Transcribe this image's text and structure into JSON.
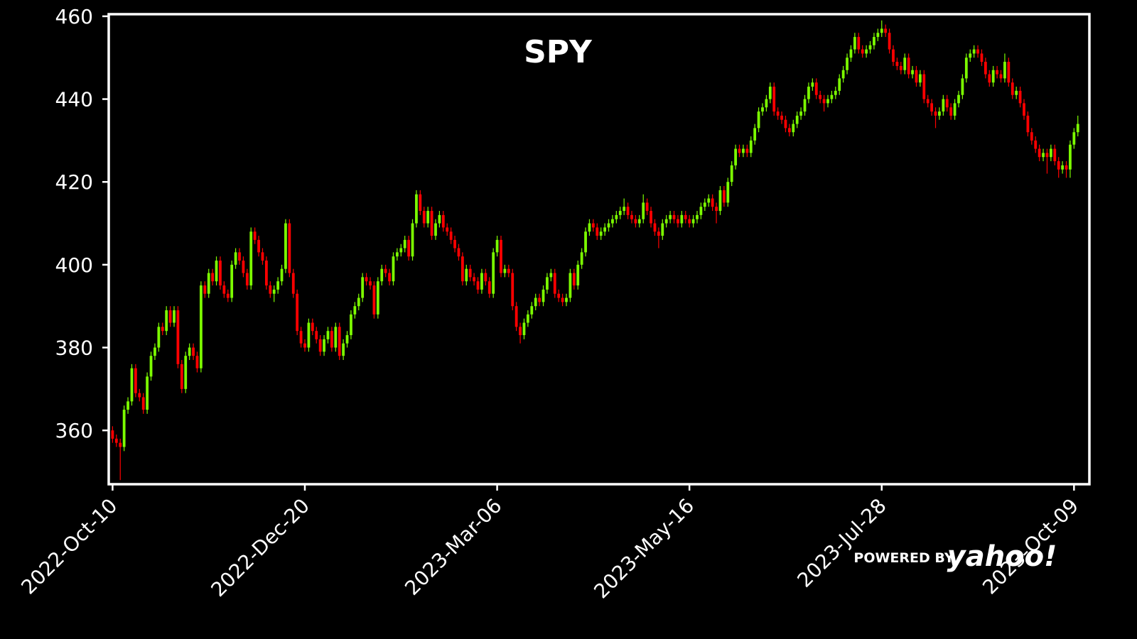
{
  "chart_data": {
    "type": "candlestick",
    "title": "SPY",
    "watermark": [
      "POWERED BY",
      "yahoo!"
    ],
    "up_color": "#7cfc00",
    "down_color": "#ff0000",
    "frame_color": "#ffffff",
    "ylim": [
      347,
      460.5
    ],
    "yticks": [
      360,
      380,
      400,
      420,
      440,
      460
    ],
    "xlim": [
      -1,
      254
    ],
    "xticks": [
      {
        "value": 0,
        "label": "2022-Oct-10"
      },
      {
        "value": 50,
        "label": "2022-Dec-20"
      },
      {
        "value": 100,
        "label": "2023-Mar-06"
      },
      {
        "value": 150,
        "label": "2023-May-16"
      },
      {
        "value": 200,
        "label": "2023-Jul-28"
      },
      {
        "value": 250,
        "label": "2023-Oct-09"
      }
    ],
    "candles": [
      [
        360,
        361,
        357,
        358
      ],
      [
        358,
        359,
        356,
        357
      ],
      [
        357,
        358,
        348,
        356
      ],
      [
        356,
        366,
        355,
        365
      ],
      [
        365,
        368,
        364,
        367
      ],
      [
        367,
        376,
        366,
        375
      ],
      [
        375,
        376,
        368,
        369
      ],
      [
        369,
        370,
        367,
        368
      ],
      [
        368,
        369,
        364,
        365
      ],
      [
        365,
        374,
        364,
        373
      ],
      [
        373,
        379,
        372,
        378
      ],
      [
        378,
        381,
        377,
        380
      ],
      [
        380,
        386,
        379,
        385
      ],
      [
        385,
        386,
        383,
        384
      ],
      [
        384,
        390,
        383,
        389
      ],
      [
        389,
        390,
        385,
        386
      ],
      [
        386,
        390,
        385,
        389
      ],
      [
        389,
        390,
        375,
        376
      ],
      [
        376,
        377,
        369,
        370
      ],
      [
        370,
        379,
        369,
        378
      ],
      [
        378,
        381,
        377,
        380
      ],
      [
        380,
        381,
        377,
        378
      ],
      [
        378,
        379,
        374,
        375
      ],
      [
        375,
        396,
        374,
        395
      ],
      [
        395,
        396,
        392,
        393
      ],
      [
        393,
        399,
        392,
        398
      ],
      [
        398,
        399,
        395,
        396
      ],
      [
        396,
        402,
        395,
        401
      ],
      [
        401,
        402,
        394,
        395
      ],
      [
        395,
        396,
        392,
        393
      ],
      [
        393,
        394,
        391,
        392
      ],
      [
        392,
        401,
        391,
        400
      ],
      [
        400,
        404,
        399,
        403
      ],
      [
        403,
        404,
        400,
        401
      ],
      [
        401,
        402,
        397,
        398
      ],
      [
        398,
        399,
        394,
        395
      ],
      [
        395,
        409,
        394,
        408
      ],
      [
        408,
        409,
        405,
        406
      ],
      [
        406,
        407,
        402,
        403
      ],
      [
        403,
        404,
        400,
        401
      ],
      [
        401,
        402,
        394,
        395
      ],
      [
        395,
        396,
        392,
        393
      ],
      [
        393,
        395,
        391,
        394
      ],
      [
        394,
        397,
        393,
        396
      ],
      [
        396,
        400,
        395,
        399
      ],
      [
        399,
        411,
        398,
        410
      ],
      [
        410,
        411,
        397,
        398
      ],
      [
        398,
        399,
        392,
        393
      ],
      [
        393,
        394,
        383,
        384
      ],
      [
        384,
        385,
        380,
        381
      ],
      [
        381,
        382,
        379,
        380
      ],
      [
        380,
        387,
        379,
        386
      ],
      [
        386,
        387,
        383,
        384
      ],
      [
        384,
        385,
        381,
        382
      ],
      [
        382,
        383,
        378,
        379
      ],
      [
        379,
        383,
        378,
        382
      ],
      [
        382,
        385,
        381,
        384
      ],
      [
        384,
        385,
        379,
        380
      ],
      [
        380,
        386,
        379,
        385
      ],
      [
        385,
        386,
        377,
        378
      ],
      [
        378,
        382,
        377,
        381
      ],
      [
        381,
        384,
        380,
        383
      ],
      [
        383,
        389,
        382,
        388
      ],
      [
        388,
        391,
        387,
        390
      ],
      [
        390,
        393,
        389,
        392
      ],
      [
        392,
        398,
        391,
        397
      ],
      [
        397,
        398,
        395,
        396
      ],
      [
        396,
        397,
        394,
        395
      ],
      [
        395,
        396,
        387,
        388
      ],
      [
        388,
        397,
        387,
        396
      ],
      [
        396,
        400,
        395,
        399
      ],
      [
        399,
        400,
        397,
        398
      ],
      [
        398,
        399,
        395,
        396
      ],
      [
        396,
        403,
        395,
        402
      ],
      [
        402,
        404,
        401,
        403
      ],
      [
        403,
        405,
        402,
        404
      ],
      [
        404,
        407,
        403,
        406
      ],
      [
        406,
        407,
        401,
        402
      ],
      [
        402,
        411,
        401,
        410
      ],
      [
        410,
        418,
        409,
        417
      ],
      [
        417,
        418,
        412,
        413
      ],
      [
        413,
        414,
        409,
        410
      ],
      [
        410,
        414,
        409,
        413
      ],
      [
        413,
        414,
        406,
        407
      ],
      [
        407,
        411,
        406,
        410
      ],
      [
        410,
        413,
        409,
        412
      ],
      [
        412,
        413,
        408,
        409
      ],
      [
        409,
        410,
        407,
        408
      ],
      [
        408,
        409,
        405,
        406
      ],
      [
        406,
        407,
        403,
        404
      ],
      [
        404,
        405,
        401,
        402
      ],
      [
        402,
        403,
        395,
        396
      ],
      [
        396,
        400,
        395,
        399
      ],
      [
        399,
        400,
        396,
        397
      ],
      [
        397,
        398,
        395,
        396
      ],
      [
        396,
        397,
        393,
        394
      ],
      [
        394,
        399,
        393,
        398
      ],
      [
        398,
        399,
        395,
        396
      ],
      [
        396,
        397,
        392,
        393
      ],
      [
        393,
        404,
        392,
        403
      ],
      [
        403,
        407,
        402,
        406
      ],
      [
        406,
        407,
        397,
        398
      ],
      [
        398,
        400,
        397,
        399
      ],
      [
        399,
        400,
        397,
        398
      ],
      [
        398,
        399,
        389,
        390
      ],
      [
        390,
        391,
        384,
        385
      ],
      [
        385,
        386,
        381,
        383
      ],
      [
        383,
        387,
        382,
        386
      ],
      [
        386,
        389,
        385,
        388
      ],
      [
        388,
        391,
        387,
        390
      ],
      [
        390,
        393,
        389,
        392
      ],
      [
        392,
        393,
        390,
        391
      ],
      [
        391,
        395,
        390,
        394
      ],
      [
        394,
        398,
        393,
        397
      ],
      [
        397,
        399,
        396,
        398
      ],
      [
        398,
        399,
        392,
        393
      ],
      [
        393,
        394,
        391,
        392
      ],
      [
        392,
        393,
        390,
        391
      ],
      [
        391,
        393,
        390,
        392
      ],
      [
        392,
        399,
        391,
        398
      ],
      [
        398,
        399,
        394,
        395
      ],
      [
        395,
        401,
        394,
        400
      ],
      [
        400,
        404,
        399,
        403
      ],
      [
        403,
        409,
        402,
        408
      ],
      [
        408,
        411,
        407,
        410
      ],
      [
        410,
        411,
        408,
        409
      ],
      [
        409,
        410,
        406,
        407
      ],
      [
        407,
        409,
        406,
        408
      ],
      [
        408,
        410,
        407,
        409
      ],
      [
        409,
        411,
        408,
        410
      ],
      [
        410,
        412,
        409,
        411
      ],
      [
        411,
        413,
        410,
        412
      ],
      [
        412,
        414,
        411,
        413
      ],
      [
        413,
        416,
        412,
        414
      ],
      [
        414,
        415,
        411,
        412
      ],
      [
        412,
        413,
        410,
        411
      ],
      [
        411,
        412,
        409,
        410
      ],
      [
        410,
        412,
        409,
        411
      ],
      [
        411,
        417,
        410,
        415
      ],
      [
        415,
        416,
        412,
        413
      ],
      [
        413,
        414,
        409,
        410
      ],
      [
        410,
        411,
        407,
        408
      ],
      [
        408,
        409,
        404,
        407
      ],
      [
        407,
        411,
        406,
        410
      ],
      [
        410,
        412,
        409,
        411
      ],
      [
        411,
        413,
        410,
        412
      ],
      [
        412,
        413,
        410,
        411
      ],
      [
        411,
        412,
        409,
        410
      ],
      [
        410,
        413,
        409,
        412
      ],
      [
        412,
        413,
        410,
        411
      ],
      [
        411,
        412,
        409,
        410
      ],
      [
        410,
        412,
        409,
        411
      ],
      [
        411,
        413,
        410,
        412
      ],
      [
        412,
        415,
        411,
        414
      ],
      [
        414,
        416,
        413,
        415
      ],
      [
        415,
        417,
        414,
        416
      ],
      [
        416,
        417,
        413,
        414
      ],
      [
        414,
        415,
        410,
        413
      ],
      [
        413,
        419,
        412,
        418
      ],
      [
        418,
        419,
        414,
        415
      ],
      [
        415,
        421,
        414,
        420
      ],
      [
        420,
        425,
        419,
        424
      ],
      [
        424,
        429,
        423,
        428
      ],
      [
        428,
        429,
        426,
        427
      ],
      [
        427,
        429,
        426,
        428
      ],
      [
        428,
        429,
        426,
        427
      ],
      [
        427,
        431,
        426,
        430
      ],
      [
        430,
        434,
        429,
        433
      ],
      [
        433,
        438,
        432,
        437
      ],
      [
        437,
        439,
        436,
        438
      ],
      [
        438,
        441,
        437,
        440
      ],
      [
        440,
        444,
        439,
        443
      ],
      [
        443,
        444,
        436,
        437
      ],
      [
        437,
        438,
        435,
        436
      ],
      [
        436,
        437,
        434,
        435
      ],
      [
        435,
        436,
        432,
        433
      ],
      [
        433,
        434,
        431,
        432
      ],
      [
        432,
        435,
        431,
        434
      ],
      [
        434,
        437,
        433,
        436
      ],
      [
        436,
        438,
        435,
        437
      ],
      [
        437,
        441,
        436,
        440
      ],
      [
        440,
        444,
        439,
        443
      ],
      [
        443,
        445,
        442,
        444
      ],
      [
        444,
        445,
        440,
        441
      ],
      [
        441,
        442,
        439,
        440
      ],
      [
        440,
        441,
        437,
        439
      ],
      [
        439,
        441,
        438,
        440
      ],
      [
        440,
        442,
        439,
        441
      ],
      [
        441,
        443,
        440,
        442
      ],
      [
        442,
        446,
        441,
        445
      ],
      [
        445,
        448,
        444,
        447
      ],
      [
        447,
        451,
        446,
        450
      ],
      [
        450,
        453,
        449,
        452
      ],
      [
        452,
        456,
        451,
        455
      ],
      [
        455,
        456,
        451,
        452
      ],
      [
        452,
        453,
        450,
        451
      ],
      [
        451,
        453,
        450,
        452
      ],
      [
        452,
        454,
        451,
        453
      ],
      [
        453,
        456,
        452,
        455
      ],
      [
        455,
        457,
        454,
        456
      ],
      [
        456,
        459,
        455,
        457
      ],
      [
        457,
        458,
        455,
        456
      ],
      [
        456,
        457,
        451,
        452
      ],
      [
        452,
        453,
        448,
        449
      ],
      [
        449,
        450,
        447,
        448
      ],
      [
        448,
        449,
        446,
        447
      ],
      [
        447,
        451,
        446,
        450
      ],
      [
        450,
        451,
        445,
        446
      ],
      [
        446,
        448,
        445,
        447
      ],
      [
        447,
        448,
        443,
        444
      ],
      [
        444,
        447,
        443,
        446
      ],
      [
        446,
        447,
        439,
        440
      ],
      [
        440,
        441,
        438,
        439
      ],
      [
        439,
        440,
        436,
        437
      ],
      [
        437,
        438,
        433,
        436
      ],
      [
        436,
        438,
        435,
        437
      ],
      [
        437,
        441,
        436,
        440
      ],
      [
        440,
        441,
        437,
        438
      ],
      [
        438,
        439,
        435,
        436
      ],
      [
        436,
        440,
        435,
        439
      ],
      [
        439,
        442,
        438,
        441
      ],
      [
        441,
        446,
        440,
        445
      ],
      [
        445,
        451,
        444,
        450
      ],
      [
        450,
        452,
        449,
        451
      ],
      [
        451,
        453,
        450,
        452
      ],
      [
        452,
        453,
        450,
        451
      ],
      [
        451,
        452,
        448,
        449
      ],
      [
        449,
        450,
        445,
        446
      ],
      [
        446,
        447,
        443,
        444
      ],
      [
        444,
        448,
        443,
        447
      ],
      [
        447,
        448,
        445,
        446
      ],
      [
        446,
        447,
        444,
        445
      ],
      [
        445,
        451,
        444,
        449
      ],
      [
        449,
        450,
        443,
        444
      ],
      [
        444,
        445,
        440,
        441
      ],
      [
        441,
        443,
        440,
        442
      ],
      [
        442,
        443,
        438,
        439
      ],
      [
        439,
        440,
        435,
        436
      ],
      [
        436,
        437,
        431,
        432
      ],
      [
        432,
        433,
        429,
        430
      ],
      [
        430,
        431,
        427,
        428
      ],
      [
        428,
        429,
        425,
        426
      ],
      [
        426,
        428,
        425,
        427
      ],
      [
        427,
        428,
        422,
        426
      ],
      [
        426,
        429,
        425,
        428
      ],
      [
        428,
        429,
        424,
        425
      ],
      [
        425,
        426,
        421,
        423
      ],
      [
        423,
        425,
        422,
        424
      ],
      [
        424,
        425,
        421,
        423
      ],
      [
        423,
        430,
        421,
        429
      ],
      [
        429,
        433,
        428,
        432
      ],
      [
        432,
        436,
        431,
        434
      ]
    ]
  }
}
